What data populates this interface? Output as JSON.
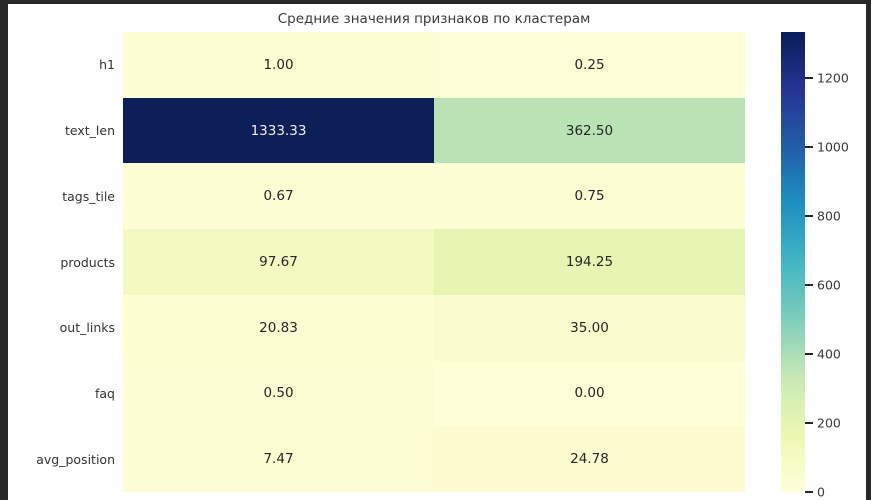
{
  "frame": {
    "background": "#272727",
    "figure_background": "#ffffff"
  },
  "chart_data": {
    "type": "heatmap",
    "title": "Средние значения признаков по кластерам",
    "colormap": "YlGnBu",
    "vmin": 0,
    "vmax": 1333.33,
    "n_columns": 2,
    "column_labels": [
      "",
      ""
    ],
    "annotation_format": "two decimals",
    "rows": [
      {
        "label": "h1",
        "cells": [
          {
            "value": 1.0,
            "label": "1.00",
            "color": "#fdfdd4",
            "text_color": "#262626"
          },
          {
            "value": 0.25,
            "label": "0.25",
            "color": "#fefed6",
            "text_color": "#262626"
          }
        ]
      },
      {
        "label": "text_len",
        "cells": [
          {
            "value": 1333.33,
            "label": "1333.33",
            "color": "#0c2057",
            "text_color": "#f0f0f0"
          },
          {
            "value": 362.5,
            "label": "362.50",
            "color": "#b9e3b5",
            "text_color": "#262626"
          }
        ]
      },
      {
        "label": "tags_tile",
        "cells": [
          {
            "value": 0.67,
            "label": "0.67",
            "color": "#fdfdd4",
            "text_color": "#262626"
          },
          {
            "value": 0.75,
            "label": "0.75",
            "color": "#fdfdd4",
            "text_color": "#262626"
          }
        ]
      },
      {
        "label": "products",
        "cells": [
          {
            "value": 97.67,
            "label": "97.67",
            "color": "#f2f9c1",
            "text_color": "#262626"
          },
          {
            "value": 194.25,
            "label": "194.25",
            "color": "#e7f5b2",
            "text_color": "#262626"
          }
        ]
      },
      {
        "label": "out_links",
        "cells": [
          {
            "value": 20.83,
            "label": "20.83",
            "color": "#fcfdd1",
            "text_color": "#262626"
          },
          {
            "value": 35.0,
            "label": "35.00",
            "color": "#fbfcce",
            "text_color": "#262626"
          }
        ]
      },
      {
        "label": "faq",
        "cells": [
          {
            "value": 0.5,
            "label": "0.50",
            "color": "#fdfdd4",
            "text_color": "#262626"
          },
          {
            "value": 0.0,
            "label": "0.00",
            "color": "#fefed7",
            "text_color": "#262626"
          }
        ]
      },
      {
        "label": "avg_position",
        "cells": [
          {
            "value": 7.47,
            "label": "7.47",
            "color": "#fdfdd4",
            "text_color": "#262626"
          },
          {
            "value": 24.78,
            "label": "24.78",
            "color": "#fcfcd0",
            "text_color": "#262626"
          }
        ]
      }
    ],
    "colorbar": {
      "position": "right",
      "tick_labels": [
        "0",
        "200",
        "400",
        "600",
        "800",
        "1000",
        "1200"
      ],
      "tick_values": [
        0,
        200,
        400,
        600,
        800,
        1000,
        1200
      ],
      "gradient_stops": [
        "#ffffd9",
        "#edf8b1",
        "#c7e9b4",
        "#7fcdbb",
        "#41b6c4",
        "#1d91c0",
        "#225ea8",
        "#253494",
        "#081d58"
      ]
    }
  }
}
